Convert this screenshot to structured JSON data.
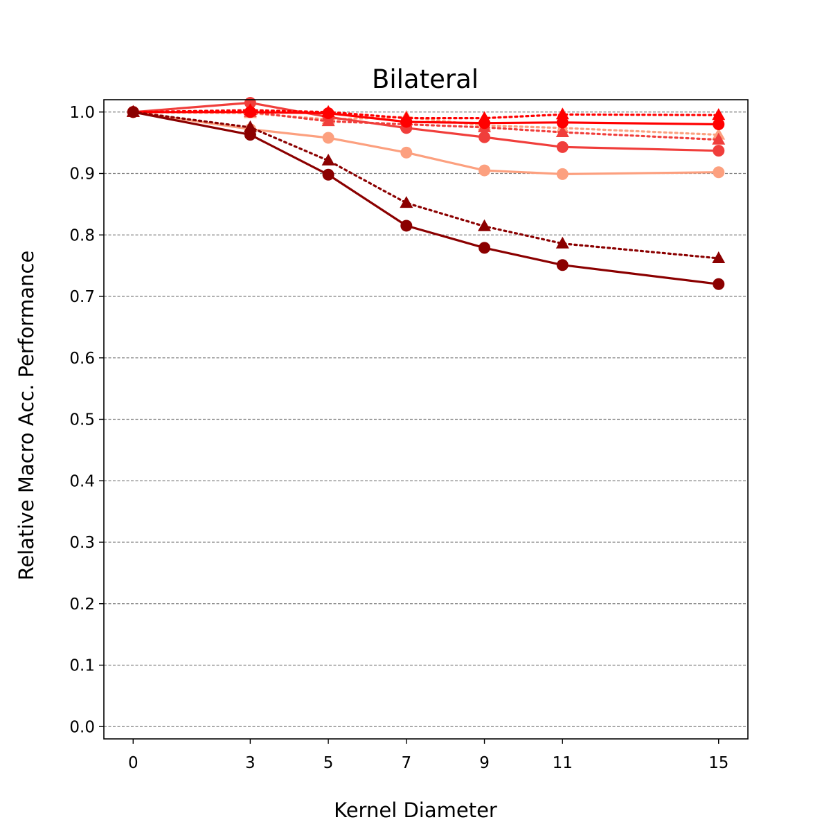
{
  "chart_data": {
    "type": "line",
    "title": "Bilateral",
    "xlabel": "Kernel Diameter",
    "ylabel": "Relative Macro Acc. Performance",
    "x": [
      0,
      3,
      5,
      7,
      9,
      11,
      15
    ],
    "xlim": [
      -0.75,
      15.75
    ],
    "ylim": [
      -0.02,
      1.02
    ],
    "yticks": [
      0.0,
      0.1,
      0.2,
      0.3,
      0.4,
      0.5,
      0.6,
      0.7,
      0.8,
      0.9,
      1.0
    ],
    "ytick_labels": [
      "0.0",
      "0.1",
      "0.2",
      "0.3",
      "0.4",
      "0.5",
      "0.6",
      "0.7",
      "0.8",
      "0.9",
      "1.0"
    ],
    "xtick_labels": [
      "0",
      "3",
      "5",
      "7",
      "9",
      "11",
      "15"
    ],
    "grid": "horizontal dashed",
    "legend": "none",
    "series": [
      {
        "color": "#FCA07F",
        "style": "solid",
        "marker": "circle",
        "values": [
          1.0,
          0.972,
          0.958,
          0.934,
          0.905,
          0.899,
          0.902
        ]
      },
      {
        "color": "#FCA07F",
        "style": "dotted",
        "marker": "triangle",
        "values": [
          1.0,
          0.998,
          0.988,
          0.992,
          0.978,
          0.974,
          0.963
        ]
      },
      {
        "color": "#F03E3B",
        "style": "solid",
        "marker": "circle",
        "values": [
          1.0,
          1.015,
          0.992,
          0.974,
          0.959,
          0.943,
          0.937
        ]
      },
      {
        "color": "#F03E3B",
        "style": "dotted",
        "marker": "triangle",
        "values": [
          1.0,
          1.0,
          0.985,
          0.98,
          0.975,
          0.967,
          0.955
        ]
      },
      {
        "color": "#FF0000",
        "style": "solid",
        "marker": "circle",
        "values": [
          1.0,
          1.0,
          0.998,
          0.984,
          0.982,
          0.983,
          0.98
        ]
      },
      {
        "color": "#FF0000",
        "style": "dotted",
        "marker": "triangle",
        "values": [
          1.0,
          1.003,
          1.0,
          0.99,
          0.99,
          0.996,
          0.995
        ]
      },
      {
        "color": "#8B0000",
        "style": "solid",
        "marker": "circle",
        "values": [
          1.0,
          0.963,
          0.898,
          0.815,
          0.779,
          0.751,
          0.72
        ]
      },
      {
        "color": "#8B0000",
        "style": "dotted",
        "marker": "triangle",
        "values": [
          1.0,
          0.975,
          0.921,
          0.852,
          0.814,
          0.786,
          0.762
        ]
      }
    ]
  }
}
